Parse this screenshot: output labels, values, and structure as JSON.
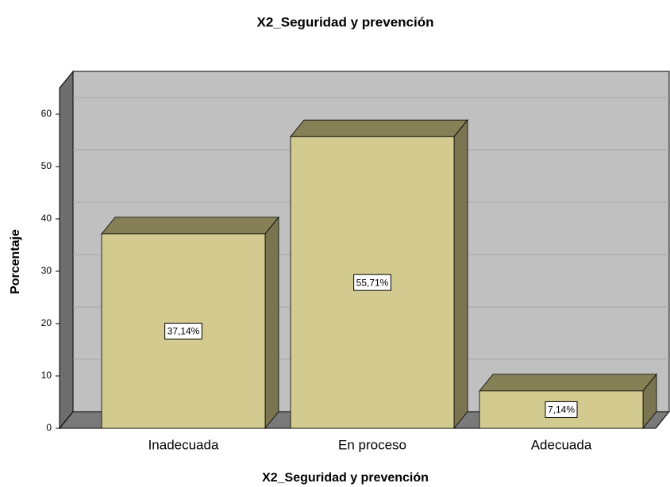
{
  "chart_data": {
    "type": "bar3d",
    "title": "X2_Seguridad y prevención",
    "x_label": "X2_Seguridad y prevención",
    "y_label": "Porcentaje",
    "categories": [
      "Inadecuada",
      "En proceso",
      "Adecuada"
    ],
    "values": [
      37.14,
      55.71,
      7.14
    ],
    "value_labels": [
      "37,14%",
      "55,71%",
      "7,14%"
    ],
    "color": "#d2ca8e",
    "ylim": [
      0,
      65
    ],
    "yticks": [
      0,
      10,
      20,
      30,
      40,
      50,
      60
    ],
    "grid": true
  }
}
